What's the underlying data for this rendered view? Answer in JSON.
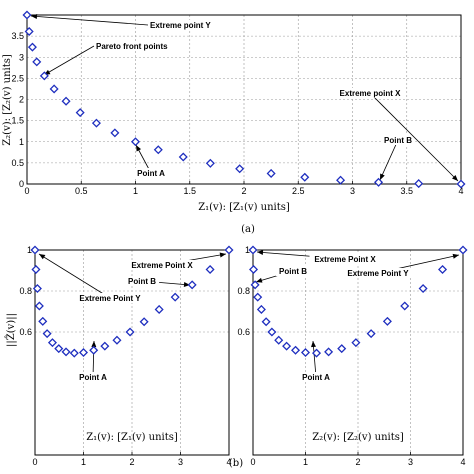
{
  "captions": {
    "a": "(a)",
    "b": "(b)"
  },
  "chart_data": [
    {
      "id": "a",
      "type": "scatter",
      "title": "",
      "xlabel": "Z₁(v): [Z₁(v) units]",
      "ylabel": "Z₂(v): [Z₂(v) units]",
      "xlim": [
        0,
        4
      ],
      "ylim": [
        0,
        4
      ],
      "grid": true,
      "xticks": [
        "0",
        "0.5",
        "1",
        "1.5",
        "2",
        "2.5",
        "3",
        "3.5",
        "4"
      ],
      "yticks": [
        "0",
        "0.5",
        "1",
        "1.5",
        "2",
        "2.5",
        "3",
        "3.5"
      ],
      "series": [
        {
          "marker": "diamond-open",
          "color": "#1f2fbf",
          "x": [
            0.0,
            0.02,
            0.05,
            0.09,
            0.16,
            0.25,
            0.36,
            0.49,
            0.64,
            0.81,
            1.0,
            1.21,
            1.44,
            1.69,
            1.96,
            2.25,
            2.56,
            2.89,
            3.24,
            3.61,
            4.0
          ],
          "y": [
            4.0,
            3.61,
            3.24,
            2.89,
            2.56,
            2.25,
            1.96,
            1.69,
            1.44,
            1.21,
            1.0,
            0.81,
            0.64,
            0.49,
            0.36,
            0.25,
            0.16,
            0.09,
            0.04,
            0.01,
            0.0
          ]
        }
      ],
      "annotations": [
        {
          "text": "Extreme point Y",
          "point": [
            0.0,
            4.0
          ]
        },
        {
          "text": "Pareto front points",
          "point": [
            0.16,
            2.56
          ]
        },
        {
          "text": "Point A",
          "point": [
            1.0,
            1.0
          ]
        },
        {
          "text": "Point B",
          "point": [
            3.24,
            0.04
          ]
        },
        {
          "text": "Extreme point X",
          "point": [
            4.0,
            0.0
          ]
        }
      ]
    },
    {
      "id": "b-left",
      "type": "scatter",
      "title": "",
      "xlabel": "Z₁(v): [Z₁(v) units]",
      "ylabel": "||Ẑ(v)||",
      "xlim": [
        0,
        4
      ],
      "ylim": [
        0,
        1
      ],
      "grid": true,
      "xticks": [
        "0",
        "1",
        "2",
        "3",
        "4"
      ],
      "yticks": [
        "0.6",
        "0.8",
        "1"
      ],
      "series": [
        {
          "marker": "diamond-open",
          "color": "#1f2fbf",
          "x": [
            0.0,
            0.02,
            0.05,
            0.09,
            0.16,
            0.25,
            0.36,
            0.49,
            0.64,
            0.81,
            1.0,
            1.21,
            1.44,
            1.69,
            1.96,
            2.25,
            2.56,
            2.89,
            3.24,
            3.61,
            4.0
          ],
          "y": [
            1.0,
            0.905,
            0.812,
            0.727,
            0.652,
            0.592,
            0.548,
            0.519,
            0.503,
            0.497,
            0.5,
            0.511,
            0.531,
            0.56,
            0.6,
            0.65,
            0.71,
            0.77,
            0.83,
            0.905,
            1.0
          ]
        }
      ],
      "annotations": [
        {
          "text": "Extreme Point X",
          "point": [
            4.0,
            1.0
          ]
        },
        {
          "text": "Point B",
          "point": [
            3.24,
            0.83
          ]
        },
        {
          "text": "Extreme Point Y",
          "point": [
            0.0,
            1.0
          ]
        },
        {
          "text": "Point A",
          "point": [
            1.0,
            0.5
          ]
        }
      ]
    },
    {
      "id": "b-right",
      "type": "scatter",
      "title": "",
      "xlabel": "Z₂(v): [Z₂(v) units]",
      "ylabel": "",
      "xlim": [
        0,
        4
      ],
      "ylim": [
        0,
        1
      ],
      "grid": true,
      "xticks": [
        "0",
        "1",
        "2",
        "3",
        "4"
      ],
      "yticks": [
        "0.6",
        "0.8",
        "1"
      ],
      "series": [
        {
          "marker": "diamond-open",
          "color": "#1f2fbf",
          "x": [
            0.0,
            0.01,
            0.04,
            0.09,
            0.16,
            0.25,
            0.36,
            0.49,
            0.64,
            0.81,
            1.0,
            1.21,
            1.44,
            1.69,
            1.96,
            2.25,
            2.56,
            2.89,
            3.24,
            3.61,
            4.0
          ],
          "y": [
            1.0,
            0.905,
            0.83,
            0.77,
            0.71,
            0.65,
            0.6,
            0.56,
            0.531,
            0.511,
            0.5,
            0.497,
            0.503,
            0.519,
            0.548,
            0.592,
            0.652,
            0.727,
            0.812,
            0.905,
            1.0
          ]
        }
      ],
      "annotations": [
        {
          "text": "Extreme Point X",
          "point": [
            0.0,
            1.0
          ]
        },
        {
          "text": "Point B",
          "point": [
            0.04,
            0.83
          ]
        },
        {
          "text": "Extreme Point Y",
          "point": [
            4.0,
            1.0
          ]
        },
        {
          "text": "Point A",
          "point": [
            1.0,
            0.5
          ]
        }
      ]
    }
  ]
}
